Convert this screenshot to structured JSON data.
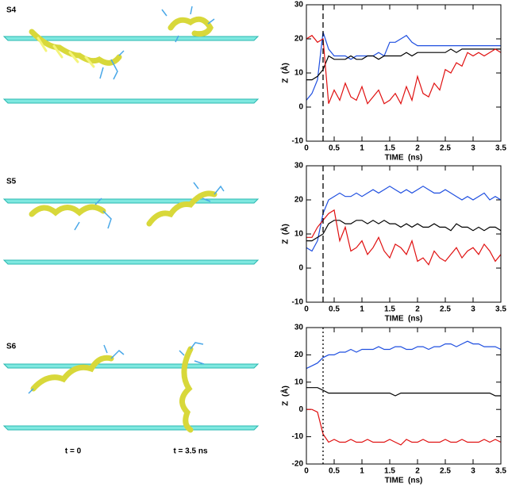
{
  "figure": {
    "panel_labels": [
      "S4",
      "S5",
      "S6"
    ],
    "time_labels": [
      "t = 0",
      "t = 3.5 ns"
    ]
  },
  "chart_data": [
    {
      "type": "line",
      "xlabel": "TIME  (ns)",
      "ylabel": "Z  (Å)",
      "xlim": [
        0,
        3.5
      ],
      "xticks": [
        0,
        0.5,
        1,
        1.5,
        2,
        2.5,
        3,
        3.5
      ],
      "ylim": [
        -10,
        30
      ],
      "yticks": [
        -10,
        0,
        10,
        20,
        30
      ],
      "vline": {
        "x": 0.3,
        "style": "dashed"
      },
      "x": [
        0,
        0.1,
        0.2,
        0.3,
        0.4,
        0.5,
        0.6,
        0.7,
        0.8,
        0.9,
        1,
        1.1,
        1.2,
        1.3,
        1.4,
        1.5,
        1.6,
        1.7,
        1.8,
        1.9,
        2,
        2.1,
        2.2,
        2.3,
        2.4,
        2.5,
        2.6,
        2.7,
        2.8,
        2.9,
        3,
        3.1,
        3.2,
        3.3,
        3.4,
        3.5
      ],
      "series": [
        {
          "color": "#1f4fe0",
          "values": [
            2,
            4,
            8,
            22,
            17,
            15,
            15,
            15,
            14,
            15,
            15,
            15,
            15,
            16,
            15,
            19,
            19,
            20,
            21,
            19,
            18,
            18,
            18,
            18,
            18,
            18,
            18,
            18,
            18,
            18,
            18,
            18,
            18,
            18,
            18,
            18
          ]
        },
        {
          "color": "#000000",
          "values": [
            8,
            8,
            9,
            11,
            15,
            14,
            14,
            14,
            15,
            14,
            14,
            15,
            15,
            14,
            15,
            15,
            15,
            15,
            16,
            15,
            16,
            16,
            16,
            16,
            16,
            16,
            17,
            16,
            17,
            17,
            17,
            17,
            17,
            17,
            17,
            17
          ]
        },
        {
          "color": "#e01010",
          "values": [
            20,
            21,
            19,
            20,
            1,
            5,
            2,
            7,
            3,
            2,
            6,
            1,
            3,
            5,
            1,
            2,
            4,
            1,
            6,
            2,
            9,
            4,
            3,
            7,
            5,
            11,
            10,
            13,
            12,
            16,
            15,
            16,
            15,
            16,
            17,
            16
          ]
        }
      ]
    },
    {
      "type": "line",
      "xlabel": "TIME  (ns)",
      "ylabel": "Z  (Å)",
      "xlim": [
        0,
        3.5
      ],
      "xticks": [
        0,
        0.5,
        1,
        1.5,
        2,
        2.5,
        3,
        3.5
      ],
      "ylim": [
        -10,
        30
      ],
      "yticks": [
        -10,
        0,
        10,
        20,
        30
      ],
      "vline": {
        "x": 0.3,
        "style": "dashed"
      },
      "x": [
        0,
        0.1,
        0.2,
        0.3,
        0.4,
        0.5,
        0.6,
        0.7,
        0.8,
        0.9,
        1,
        1.1,
        1.2,
        1.3,
        1.4,
        1.5,
        1.6,
        1.7,
        1.8,
        1.9,
        2,
        2.1,
        2.2,
        2.3,
        2.4,
        2.5,
        2.6,
        2.7,
        2.8,
        2.9,
        3,
        3.1,
        3.2,
        3.3,
        3.4,
        3.5
      ],
      "series": [
        {
          "color": "#1f4fe0",
          "values": [
            6,
            5,
            8,
            16,
            20,
            21,
            22,
            21,
            21,
            22,
            21,
            22,
            23,
            22,
            23,
            24,
            23,
            22,
            23,
            22,
            23,
            24,
            23,
            22,
            22,
            23,
            22,
            21,
            20,
            21,
            20,
            21,
            22,
            20,
            21,
            20
          ]
        },
        {
          "color": "#000000",
          "values": [
            8,
            8,
            9,
            10,
            13,
            14,
            14,
            13,
            13,
            14,
            14,
            13,
            14,
            13,
            14,
            13,
            13,
            12,
            13,
            12,
            13,
            12,
            12,
            13,
            12,
            12,
            11,
            13,
            12,
            12,
            11,
            12,
            11,
            12,
            12,
            11
          ]
        },
        {
          "color": "#e01010",
          "values": [
            9,
            9,
            12,
            14,
            16,
            17,
            8,
            12,
            5,
            6,
            8,
            4,
            6,
            9,
            5,
            3,
            7,
            6,
            4,
            8,
            2,
            3,
            1,
            5,
            3,
            2,
            4,
            6,
            3,
            5,
            6,
            4,
            7,
            5,
            2,
            4
          ]
        }
      ]
    },
    {
      "type": "line",
      "xlabel": "TIME  (ns)",
      "ylabel": "Z  (Å)",
      "xlim": [
        0,
        3.5
      ],
      "xticks": [
        0,
        0.5,
        1,
        1.5,
        2,
        2.5,
        3,
        3.5
      ],
      "ylim": [
        -20,
        30
      ],
      "yticks": [
        -20,
        -10,
        0,
        10,
        20,
        30
      ],
      "vline": {
        "x": 0.3,
        "style": "dotted"
      },
      "x": [
        0,
        0.1,
        0.2,
        0.3,
        0.4,
        0.5,
        0.6,
        0.7,
        0.8,
        0.9,
        1,
        1.1,
        1.2,
        1.3,
        1.4,
        1.5,
        1.6,
        1.7,
        1.8,
        1.9,
        2,
        2.1,
        2.2,
        2.3,
        2.4,
        2.5,
        2.6,
        2.7,
        2.8,
        2.9,
        3,
        3.1,
        3.2,
        3.3,
        3.4,
        3.5
      ],
      "series": [
        {
          "color": "#1f4fe0",
          "values": [
            15,
            16,
            17,
            19,
            20,
            20,
            21,
            21,
            22,
            21,
            22,
            22,
            22,
            23,
            22,
            22,
            23,
            23,
            22,
            22,
            23,
            23,
            22,
            23,
            23,
            24,
            24,
            23,
            24,
            25,
            24,
            24,
            23,
            23,
            23,
            22
          ]
        },
        {
          "color": "#000000",
          "values": [
            8,
            8,
            8,
            7,
            6,
            6,
            6,
            6,
            6,
            6,
            6,
            6,
            6,
            6,
            6,
            6,
            5,
            6,
            6,
            6,
            6,
            6,
            6,
            6,
            6,
            6,
            6,
            6,
            6,
            6,
            6,
            6,
            6,
            6,
            5,
            5
          ]
        },
        {
          "color": "#e01010",
          "values": [
            0,
            0,
            -1,
            -9,
            -12,
            -11,
            -12,
            -12,
            -11,
            -12,
            -12,
            -11,
            -12,
            -12,
            -12,
            -11,
            -12,
            -13,
            -11,
            -12,
            -12,
            -11,
            -12,
            -12,
            -12,
            -11,
            -12,
            -12,
            -11,
            -12,
            -12,
            -12,
            -11,
            -12,
            -11,
            -12
          ]
        }
      ]
    }
  ]
}
